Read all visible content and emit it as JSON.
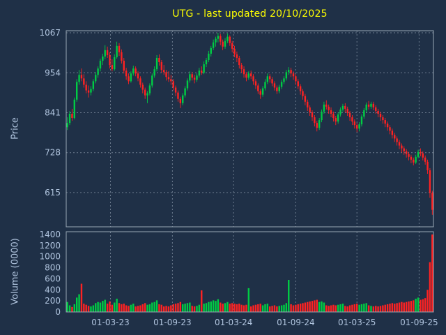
{
  "title": "UTG - last updated 20/10/2025",
  "colors": {
    "background": "#1f3047",
    "up": "#00cc44",
    "down": "#ff2222",
    "grid": "#6b7a8d",
    "spine": "#9aa7b4",
    "title": "#ffff00",
    "tick_label": "#b0c4de"
  },
  "price_axis": {
    "label": "Price",
    "ticks": [
      1067,
      954,
      841,
      728,
      615
    ],
    "ylim": [
      518,
      1073
    ]
  },
  "volume_axis": {
    "label": "Volume (0000)",
    "ticks": [
      1400,
      1200,
      1000,
      800,
      600,
      400,
      200,
      0
    ],
    "ylim": [
      0,
      1450
    ]
  },
  "x_axis": {
    "tick_labels": [
      "01-03-23",
      "01-09-23",
      "01-03-24",
      "01-09-24",
      "01-03-25",
      "01-09-25"
    ],
    "tick_indices": [
      18.3,
      44.6,
      70.6,
      97.0,
      123.0,
      149.4
    ]
  },
  "chart_data": {
    "type": "candlestick",
    "title": "UTG - last updated 20/10/2025",
    "subpanels": [
      "price",
      "volume"
    ],
    "interval": "weekly",
    "columns": [
      "open",
      "high",
      "low",
      "close",
      "volume_0000"
    ],
    "legend": "none",
    "grid": "dashed",
    "ohlcv": [
      [
        800,
        828,
        792,
        812,
        180
      ],
      [
        812,
        846,
        806,
        838,
        120
      ],
      [
        838,
        852,
        818,
        826,
        90
      ],
      [
        826,
        884,
        822,
        878,
        140
      ],
      [
        878,
        936,
        872,
        928,
        260
      ],
      [
        928,
        962,
        920,
        948,
        320
      ],
      [
        948,
        966,
        930,
        938,
        510
      ],
      [
        938,
        950,
        912,
        920,
        150
      ],
      [
        920,
        930,
        896,
        904,
        130
      ],
      [
        904,
        918,
        884,
        898,
        110
      ],
      [
        898,
        916,
        890,
        908,
        100
      ],
      [
        908,
        936,
        902,
        930,
        120
      ],
      [
        930,
        956,
        924,
        948,
        160
      ],
      [
        948,
        972,
        940,
        966,
        180
      ],
      [
        966,
        994,
        958,
        988,
        170
      ],
      [
        988,
        1008,
        976,
        1000,
        200
      ],
      [
        1000,
        1032,
        992,
        1018,
        220
      ],
      [
        1018,
        1028,
        996,
        1004,
        150
      ],
      [
        1004,
        1012,
        966,
        976,
        190
      ],
      [
        976,
        992,
        958,
        964,
        130
      ],
      [
        964,
        1006,
        960,
        998,
        170
      ],
      [
        998,
        1042,
        994,
        1030,
        240
      ],
      [
        1030,
        1038,
        1002,
        1012,
        160
      ],
      [
        1012,
        1020,
        980,
        988,
        140
      ],
      [
        988,
        996,
        952,
        960,
        150
      ],
      [
        960,
        968,
        934,
        944,
        120
      ],
      [
        944,
        952,
        922,
        930,
        110
      ],
      [
        930,
        958,
        926,
        952,
        130
      ],
      [
        952,
        974,
        946,
        966,
        150
      ],
      [
        966,
        972,
        944,
        952,
        100
      ],
      [
        952,
        958,
        930,
        938,
        110
      ],
      [
        938,
        944,
        912,
        920,
        120
      ],
      [
        920,
        926,
        896,
        906,
        140
      ],
      [
        906,
        912,
        880,
        890,
        160
      ],
      [
        890,
        902,
        868,
        896,
        130
      ],
      [
        896,
        924,
        890,
        918,
        140
      ],
      [
        918,
        952,
        912,
        946,
        170
      ],
      [
        946,
        972,
        940,
        964,
        180
      ],
      [
        964,
        1004,
        958,
        996,
        210
      ],
      [
        996,
        1006,
        974,
        984,
        140
      ],
      [
        984,
        990,
        954,
        962,
        130
      ],
      [
        962,
        976,
        948,
        956,
        100
      ],
      [
        956,
        962,
        932,
        942,
        110
      ],
      [
        942,
        958,
        928,
        936,
        100
      ],
      [
        936,
        948,
        920,
        930,
        120
      ],
      [
        930,
        936,
        904,
        912,
        140
      ],
      [
        912,
        918,
        888,
        898,
        150
      ],
      [
        898,
        904,
        872,
        880,
        160
      ],
      [
        880,
        886,
        854,
        868,
        180
      ],
      [
        868,
        896,
        862,
        890,
        140
      ],
      [
        890,
        916,
        884,
        910,
        150
      ],
      [
        910,
        938,
        904,
        932,
        160
      ],
      [
        932,
        958,
        926,
        950,
        170
      ],
      [
        950,
        956,
        932,
        940,
        110
      ],
      [
        940,
        948,
        924,
        934,
        100
      ],
      [
        934,
        952,
        928,
        946,
        110
      ],
      [
        946,
        968,
        940,
        960,
        130
      ],
      [
        960,
        972,
        948,
        954,
        390
      ],
      [
        954,
        986,
        950,
        978,
        150
      ],
      [
        978,
        996,
        970,
        990,
        160
      ],
      [
        990,
        1016,
        984,
        1008,
        180
      ],
      [
        1008,
        1030,
        1000,
        1024,
        190
      ],
      [
        1024,
        1048,
        1018,
        1040,
        210
      ],
      [
        1040,
        1056,
        1028,
        1050,
        200
      ],
      [
        1050,
        1067,
        1040,
        1058,
        230
      ],
      [
        1058,
        1064,
        1032,
        1042,
        170
      ],
      [
        1042,
        1048,
        1018,
        1028,
        150
      ],
      [
        1028,
        1052,
        1022,
        1044,
        160
      ],
      [
        1044,
        1065,
        1038,
        1056,
        180
      ],
      [
        1056,
        1060,
        1030,
        1038,
        150
      ],
      [
        1038,
        1044,
        1012,
        1022,
        160
      ],
      [
        1022,
        1030,
        998,
        1006,
        150
      ],
      [
        1006,
        1014,
        984,
        996,
        140
      ],
      [
        996,
        1002,
        966,
        976,
        150
      ],
      [
        976,
        982,
        954,
        964,
        130
      ],
      [
        964,
        972,
        940,
        950,
        120
      ],
      [
        950,
        956,
        930,
        940,
        130
      ],
      [
        940,
        958,
        934,
        952,
        430
      ],
      [
        952,
        960,
        936,
        944,
        100
      ],
      [
        944,
        950,
        920,
        930,
        120
      ],
      [
        930,
        936,
        908,
        918,
        130
      ],
      [
        918,
        924,
        894,
        902,
        140
      ],
      [
        902,
        908,
        880,
        892,
        150
      ],
      [
        892,
        916,
        886,
        910,
        120
      ],
      [
        910,
        936,
        904,
        928,
        140
      ],
      [
        928,
        952,
        922,
        944,
        150
      ],
      [
        944,
        950,
        926,
        936,
        100
      ],
      [
        936,
        942,
        916,
        924,
        110
      ],
      [
        924,
        930,
        904,
        912,
        120
      ],
      [
        912,
        918,
        894,
        902,
        100
      ],
      [
        902,
        920,
        896,
        914,
        110
      ],
      [
        914,
        934,
        908,
        928,
        120
      ],
      [
        928,
        944,
        922,
        938,
        130
      ],
      [
        938,
        962,
        932,
        956,
        160
      ],
      [
        956,
        970,
        948,
        962,
        580
      ],
      [
        962,
        968,
        942,
        952,
        140
      ],
      [
        952,
        958,
        934,
        944,
        120
      ],
      [
        944,
        950,
        920,
        930,
        130
      ],
      [
        930,
        936,
        908,
        916,
        140
      ],
      [
        916,
        922,
        892,
        902,
        150
      ],
      [
        902,
        908,
        878,
        888,
        160
      ],
      [
        888,
        894,
        862,
        872,
        170
      ],
      [
        872,
        878,
        846,
        856,
        180
      ],
      [
        856,
        862,
        832,
        842,
        190
      ],
      [
        842,
        848,
        818,
        828,
        200
      ],
      [
        828,
        834,
        802,
        812,
        210
      ],
      [
        812,
        818,
        788,
        798,
        220
      ],
      [
        798,
        826,
        792,
        820,
        180
      ],
      [
        820,
        850,
        814,
        844,
        190
      ],
      [
        844,
        872,
        838,
        864,
        170
      ],
      [
        864,
        876,
        850,
        858,
        120
      ],
      [
        858,
        864,
        838,
        848,
        110
      ],
      [
        848,
        856,
        828,
        838,
        120
      ],
      [
        838,
        844,
        816,
        826,
        130
      ],
      [
        826,
        832,
        806,
        816,
        120
      ],
      [
        816,
        842,
        810,
        836,
        130
      ],
      [
        836,
        856,
        830,
        850,
        140
      ],
      [
        850,
        866,
        844,
        860,
        150
      ],
      [
        860,
        868,
        842,
        852,
        110
      ],
      [
        852,
        858,
        832,
        840,
        100
      ],
      [
        840,
        846,
        818,
        828,
        120
      ],
      [
        828,
        834,
        806,
        816,
        130
      ],
      [
        816,
        822,
        796,
        806,
        140
      ],
      [
        806,
        812,
        786,
        796,
        150
      ],
      [
        796,
        814,
        788,
        808,
        130
      ],
      [
        808,
        836,
        802,
        830,
        140
      ],
      [
        830,
        854,
        824,
        848,
        150
      ],
      [
        848,
        870,
        842,
        864,
        160
      ],
      [
        864,
        874,
        850,
        858,
        120
      ],
      [
        858,
        872,
        852,
        866,
        110
      ],
      [
        866,
        872,
        848,
        856,
        100
      ],
      [
        856,
        862,
        838,
        846,
        110
      ],
      [
        846,
        852,
        828,
        838,
        100
      ],
      [
        838,
        844,
        818,
        828,
        110
      ],
      [
        828,
        834,
        810,
        820,
        120
      ],
      [
        820,
        826,
        800,
        810,
        130
      ],
      [
        810,
        816,
        790,
        800,
        140
      ],
      [
        800,
        806,
        780,
        790,
        150
      ],
      [
        790,
        796,
        768,
        778,
        160
      ],
      [
        778,
        784,
        758,
        768,
        150
      ],
      [
        768,
        774,
        748,
        758,
        160
      ],
      [
        758,
        764,
        738,
        748,
        170
      ],
      [
        748,
        754,
        728,
        740,
        180
      ],
      [
        740,
        746,
        722,
        732,
        170
      ],
      [
        732,
        738,
        714,
        724,
        180
      ],
      [
        724,
        730,
        706,
        716,
        190
      ],
      [
        716,
        722,
        698,
        708,
        200
      ],
      [
        708,
        714,
        692,
        700,
        210
      ],
      [
        700,
        722,
        696,
        716,
        240
      ],
      [
        716,
        736,
        712,
        730,
        260
      ],
      [
        730,
        740,
        718,
        726,
        220
      ],
      [
        726,
        732,
        706,
        714,
        230
      ],
      [
        714,
        720,
        694,
        702,
        250
      ],
      [
        702,
        708,
        668,
        678,
        400
      ],
      [
        678,
        684,
        600,
        614,
        900
      ],
      [
        614,
        620,
        552,
        566,
        1400
      ]
    ]
  }
}
